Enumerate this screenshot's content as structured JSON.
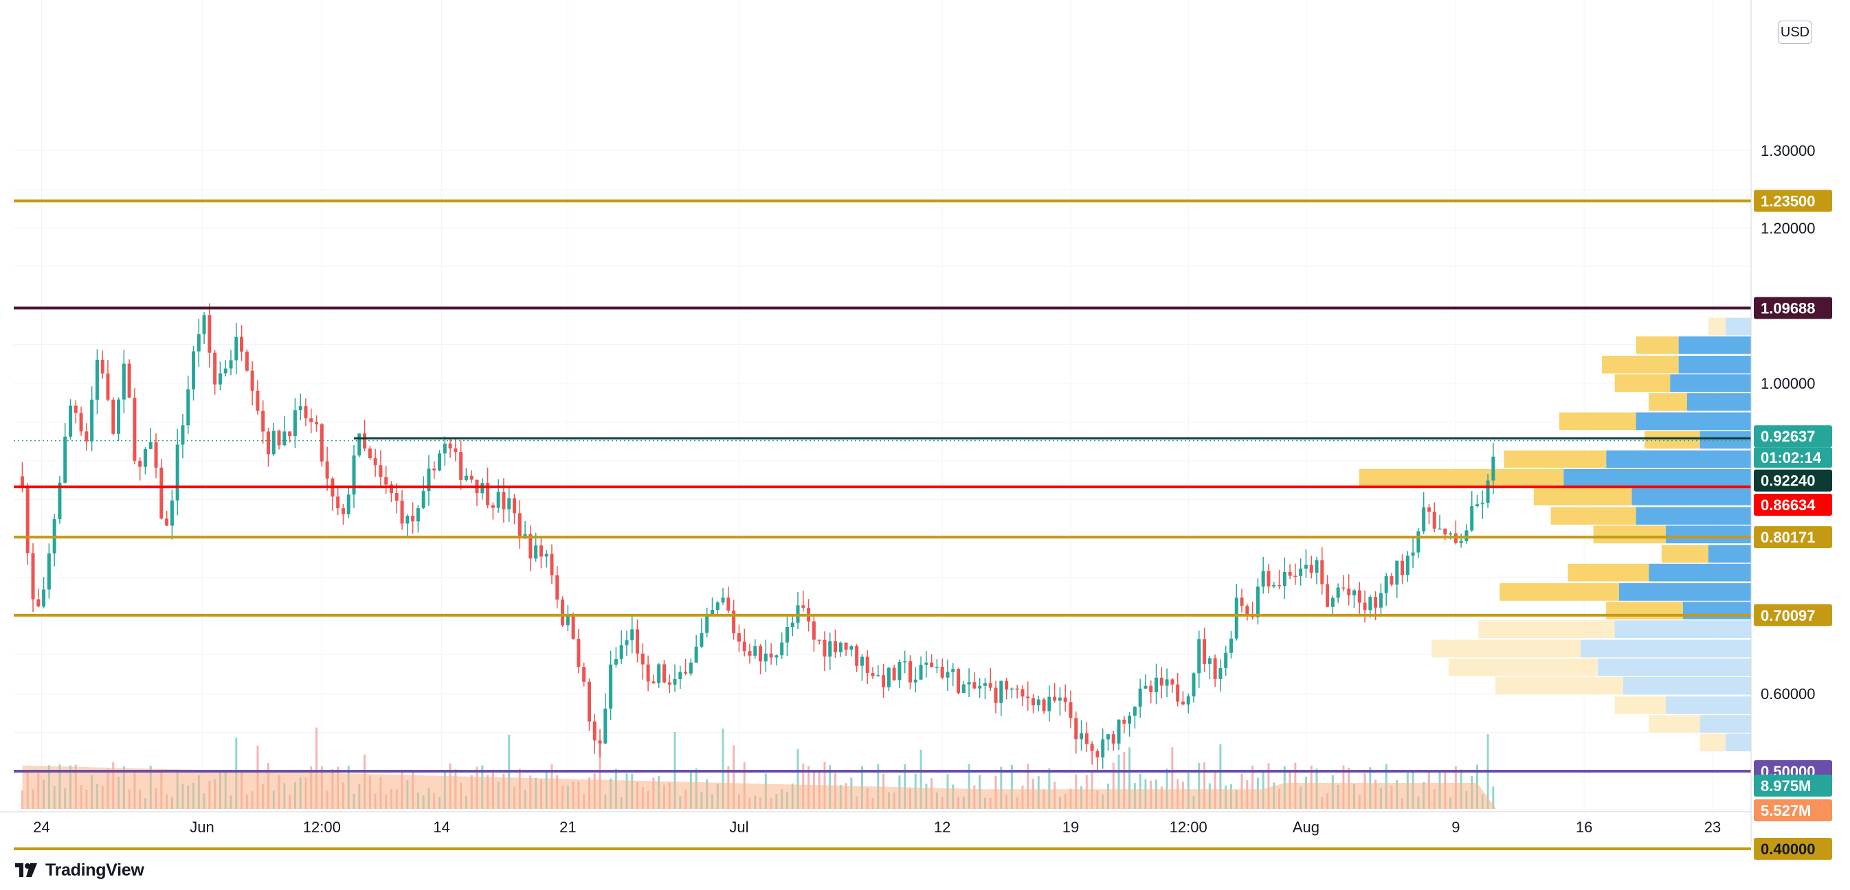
{
  "currency": "USD",
  "brand": {
    "name": "TradingView",
    "logo_icon": "tradingview-logo-icon"
  },
  "chart_data": {
    "type": "candlestick",
    "y_axis": {
      "min": 0.35,
      "max": 1.33,
      "ticks": [
        {
          "value": 1.3,
          "label": "1.30000"
        },
        {
          "value": 1.2,
          "label": "1.20000"
        },
        {
          "value": 1.0,
          "label": "1.00000"
        },
        {
          "value": 0.6,
          "label": "0.60000"
        }
      ]
    },
    "x_axis": {
      "ticks": [
        {
          "t": 0.9,
          "label": "24"
        },
        {
          "t": 8.4,
          "label": "Jun"
        },
        {
          "t": 14.0,
          "label": "12:00"
        },
        {
          "t": 19.6,
          "label": "14"
        },
        {
          "t": 25.5,
          "label": "21"
        },
        {
          "t": 33.5,
          "label": "Jul"
        },
        {
          "t": 43.0,
          "label": "12"
        },
        {
          "t": 49.0,
          "label": "19"
        },
        {
          "t": 54.5,
          "label": "12:00"
        },
        {
          "t": 60.0,
          "label": "Aug"
        },
        {
          "t": 67.0,
          "label": "9"
        },
        {
          "t": 73.0,
          "label": "16"
        },
        {
          "t": 79.0,
          "label": "23"
        }
      ],
      "t_min": -0.4,
      "t_max": 80.8
    },
    "levels": [
      {
        "value": 1.235,
        "label": "1.23500",
        "color": "#c59a13",
        "text_color": "#ffffff"
      },
      {
        "value": 1.09688,
        "label": "1.09688",
        "color": "#4a1530",
        "text_color": "#ffffff"
      },
      {
        "value": 0.92637,
        "label": "0.92637",
        "sub_label": "01:02:14",
        "color": "#26a69a",
        "text_color": "#ffffff"
      },
      {
        "value": 0.9224,
        "label": "0.92240",
        "color": "#0b3b33",
        "text_color": "#ffffff"
      },
      {
        "value": 0.86634,
        "label": "0.86634",
        "color": "#ff0000",
        "text_color": "#ffffff"
      },
      {
        "value": 0.80171,
        "label": "0.80171",
        "color": "#c59a13",
        "text_color": "#ffffff"
      },
      {
        "value": 0.70097,
        "label": "0.70097",
        "color": "#c59a13",
        "text_color": "#ffffff"
      },
      {
        "value": 0.5,
        "label": "0.50000",
        "color": "#6a4fa8",
        "text_color": "#ffffff"
      },
      {
        "value": 0.4,
        "label": "0.40000",
        "color": "#c59a13",
        "text_color": "#131722"
      }
    ],
    "volume_badges": [
      {
        "label": "8.975M",
        "color": "#26a69a"
      },
      {
        "label": "5.527M",
        "color": "#f7925a"
      }
    ],
    "price_path": [
      [
        0.0,
        0.88
      ],
      [
        0.4,
        0.72
      ],
      [
        0.9,
        0.7
      ],
      [
        1.6,
        0.85
      ],
      [
        2.3,
        0.98
      ],
      [
        3.0,
        0.93
      ],
      [
        3.6,
        1.05
      ],
      [
        4.2,
        0.93
      ],
      [
        4.8,
        1.02
      ],
      [
        5.4,
        0.88
      ],
      [
        6.0,
        0.92
      ],
      [
        6.7,
        0.8
      ],
      [
        7.3,
        0.92
      ],
      [
        7.9,
        1.02
      ],
      [
        8.4,
        1.09
      ],
      [
        9.0,
        1.0
      ],
      [
        9.6,
        1.03
      ],
      [
        10.2,
        1.06
      ],
      [
        10.8,
        1.0
      ],
      [
        11.4,
        0.92
      ],
      [
        12.0,
        0.93
      ],
      [
        12.6,
        0.95
      ],
      [
        13.2,
        0.96
      ],
      [
        13.8,
        0.93
      ],
      [
        14.4,
        0.85
      ],
      [
        15.0,
        0.82
      ],
      [
        15.6,
        0.93
      ],
      [
        16.2,
        0.9
      ],
      [
        16.8,
        0.87
      ],
      [
        17.4,
        0.85
      ],
      [
        18.0,
        0.82
      ],
      [
        18.6,
        0.83
      ],
      [
        19.2,
        0.9
      ],
      [
        19.8,
        0.92
      ],
      [
        20.4,
        0.89
      ],
      [
        21.0,
        0.88
      ],
      [
        21.6,
        0.86
      ],
      [
        22.2,
        0.85
      ],
      [
        22.8,
        0.84
      ],
      [
        23.4,
        0.8
      ],
      [
        24.0,
        0.78
      ],
      [
        24.6,
        0.78
      ],
      [
        25.2,
        0.7
      ],
      [
        25.8,
        0.68
      ],
      [
        26.4,
        0.58
      ],
      [
        26.9,
        0.51
      ],
      [
        27.4,
        0.62
      ],
      [
        28.0,
        0.66
      ],
      [
        28.6,
        0.68
      ],
      [
        29.2,
        0.6
      ],
      [
        29.8,
        0.63
      ],
      [
        30.4,
        0.6
      ],
      [
        31.0,
        0.64
      ],
      [
        31.6,
        0.66
      ],
      [
        32.2,
        0.7
      ],
      [
        32.8,
        0.72
      ],
      [
        33.4,
        0.67
      ],
      [
        34.0,
        0.66
      ],
      [
        34.6,
        0.64
      ],
      [
        35.2,
        0.66
      ],
      [
        35.8,
        0.68
      ],
      [
        36.4,
        0.71
      ],
      [
        37.0,
        0.67
      ],
      [
        37.6,
        0.66
      ],
      [
        38.2,
        0.67
      ],
      [
        38.8,
        0.65
      ],
      [
        39.4,
        0.64
      ],
      [
        40.0,
        0.62
      ],
      [
        40.6,
        0.62
      ],
      [
        41.2,
        0.63
      ],
      [
        41.8,
        0.62
      ],
      [
        42.4,
        0.64
      ],
      [
        43.0,
        0.63
      ],
      [
        43.6,
        0.62
      ],
      [
        44.2,
        0.6
      ],
      [
        44.8,
        0.61
      ],
      [
        45.4,
        0.6
      ],
      [
        46.0,
        0.61
      ],
      [
        46.6,
        0.59
      ],
      [
        47.2,
        0.6
      ],
      [
        47.8,
        0.58
      ],
      [
        48.4,
        0.59
      ],
      [
        49.0,
        0.57
      ],
      [
        49.6,
        0.53
      ],
      [
        50.2,
        0.52
      ],
      [
        50.8,
        0.54
      ],
      [
        51.4,
        0.57
      ],
      [
        52.0,
        0.59
      ],
      [
        52.6,
        0.6
      ],
      [
        53.2,
        0.61
      ],
      [
        53.8,
        0.6
      ],
      [
        54.4,
        0.6
      ],
      [
        55.0,
        0.66
      ],
      [
        55.6,
        0.63
      ],
      [
        56.2,
        0.64
      ],
      [
        56.8,
        0.73
      ],
      [
        57.4,
        0.7
      ],
      [
        58.0,
        0.76
      ],
      [
        58.6,
        0.74
      ],
      [
        59.2,
        0.76
      ],
      [
        59.8,
        0.75
      ],
      [
        60.4,
        0.77
      ],
      [
        61.0,
        0.71
      ],
      [
        61.6,
        0.74
      ],
      [
        62.2,
        0.72
      ],
      [
        62.8,
        0.71
      ],
      [
        63.4,
        0.72
      ],
      [
        64.0,
        0.75
      ],
      [
        64.6,
        0.77
      ],
      [
        65.2,
        0.81
      ],
      [
        65.8,
        0.84
      ],
      [
        66.4,
        0.8
      ],
      [
        67.0,
        0.79
      ],
      [
        67.6,
        0.82
      ],
      [
        68.2,
        0.85
      ],
      [
        68.6,
        0.87
      ],
      [
        68.9,
        0.92
      ]
    ],
    "volume_profile": [
      {
        "p": 1.073,
        "yellow": 0.04,
        "blue": 0.06
      },
      {
        "p": 1.049,
        "yellow": 0.1,
        "blue": 0.17
      },
      {
        "p": 1.024,
        "yellow": 0.18,
        "blue": 0.17
      },
      {
        "p": 1.0,
        "yellow": 0.13,
        "blue": 0.19
      },
      {
        "p": 0.976,
        "yellow": 0.09,
        "blue": 0.15
      },
      {
        "p": 0.951,
        "yellow": 0.18,
        "blue": 0.27
      },
      {
        "p": 0.927,
        "yellow": 0.13,
        "blue": 0.12
      },
      {
        "p": 0.902,
        "yellow": 0.24,
        "blue": 0.34
      },
      {
        "p": 0.878,
        "yellow": 0.48,
        "blue": 0.44
      },
      {
        "p": 0.854,
        "yellow": 0.23,
        "blue": 0.28
      },
      {
        "p": 0.829,
        "yellow": 0.2,
        "blue": 0.27
      },
      {
        "p": 0.805,
        "yellow": 0.17,
        "blue": 0.2
      },
      {
        "p": 0.78,
        "yellow": 0.11,
        "blue": 0.1
      },
      {
        "p": 0.756,
        "yellow": 0.19,
        "blue": 0.24
      },
      {
        "p": 0.731,
        "yellow": 0.28,
        "blue": 0.31
      },
      {
        "p": 0.707,
        "yellow": 0.18,
        "blue": 0.16
      },
      {
        "p": 0.683,
        "yellow": 0.32,
        "blue": 0.32
      },
      {
        "p": 0.658,
        "yellow": 0.35,
        "blue": 0.4
      },
      {
        "p": 0.634,
        "yellow": 0.35,
        "blue": 0.36
      },
      {
        "p": 0.61,
        "yellow": 0.3,
        "blue": 0.3
      },
      {
        "p": 0.585,
        "yellow": 0.12,
        "blue": 0.2
      },
      {
        "p": 0.561,
        "yellow": 0.12,
        "blue": 0.12
      },
      {
        "p": 0.537,
        "yellow": 0.06,
        "blue": 0.06
      }
    ]
  }
}
